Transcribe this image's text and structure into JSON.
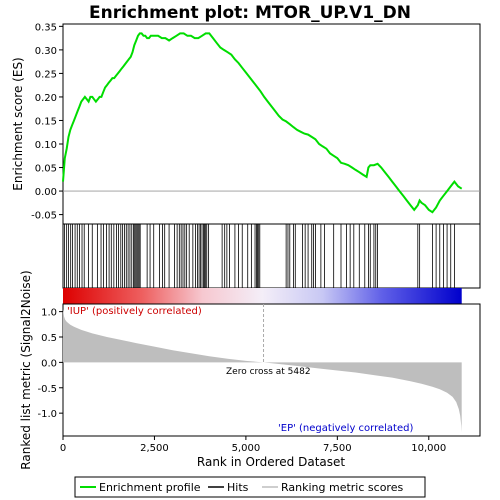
{
  "chart_data": {
    "type": "line",
    "title": "Enrichment plot: MTOR_UP.V1_DN",
    "top_panel": {
      "ylabel": "Enrichment score (ES)",
      "ylim": [
        -0.07,
        0.355
      ],
      "yticks": [
        -0.05,
        0.0,
        0.05,
        0.1,
        0.15,
        0.2,
        0.25,
        0.3,
        0.35
      ],
      "ytick_labels": [
        "-0.05",
        "0.00",
        "0.05",
        "0.10",
        "0.15",
        "0.20",
        "0.25",
        "0.30",
        "0.35"
      ],
      "series_color": "#00dd00",
      "enrichment_profile": {
        "x": [
          0,
          50,
          100,
          150,
          200,
          250,
          300,
          350,
          400,
          450,
          500,
          550,
          600,
          650,
          700,
          750,
          800,
          850,
          900,
          950,
          1000,
          1050,
          1100,
          1150,
          1200,
          1250,
          1300,
          1350,
          1400,
          1450,
          1500,
          1550,
          1600,
          1650,
          1700,
          1750,
          1800,
          1850,
          1900,
          1950,
          2000,
          2050,
          2100,
          2150,
          2200,
          2250,
          2300,
          2350,
          2400,
          2450,
          2500,
          2600,
          2700,
          2800,
          2900,
          3000,
          3100,
          3200,
          3300,
          3400,
          3500,
          3600,
          3700,
          3800,
          3900,
          4000,
          4100,
          4200,
          4300,
          4400,
          4500,
          4600,
          4700,
          4800,
          4900,
          5000,
          5100,
          5200,
          5300,
          5400,
          5500,
          5600,
          5700,
          5800,
          5900,
          6000,
          6100,
          6200,
          6300,
          6400,
          6500,
          6600,
          6700,
          6800,
          6900,
          7000,
          7100,
          7200,
          7300,
          7400,
          7500,
          7600,
          7700,
          7800,
          7900,
          8000,
          8100,
          8200,
          8300,
          8350,
          8400,
          8500,
          8600,
          8700,
          8800,
          8900,
          9000,
          9100,
          9200,
          9300,
          9400,
          9500,
          9600,
          9700,
          9750,
          9800,
          9900,
          10000,
          10100,
          10200,
          10300,
          10400,
          10500,
          10600,
          10700,
          10800,
          10900
        ],
        "y": [
          0.02,
          0.07,
          0.09,
          0.115,
          0.13,
          0.14,
          0.15,
          0.16,
          0.17,
          0.18,
          0.19,
          0.195,
          0.2,
          0.195,
          0.19,
          0.2,
          0.2,
          0.195,
          0.19,
          0.195,
          0.2,
          0.2,
          0.21,
          0.22,
          0.225,
          0.23,
          0.235,
          0.24,
          0.24,
          0.245,
          0.25,
          0.255,
          0.26,
          0.265,
          0.27,
          0.275,
          0.28,
          0.285,
          0.295,
          0.31,
          0.32,
          0.33,
          0.335,
          0.335,
          0.33,
          0.33,
          0.325,
          0.325,
          0.33,
          0.33,
          0.33,
          0.33,
          0.325,
          0.325,
          0.32,
          0.325,
          0.33,
          0.335,
          0.335,
          0.33,
          0.33,
          0.325,
          0.325,
          0.33,
          0.335,
          0.335,
          0.325,
          0.315,
          0.305,
          0.3,
          0.295,
          0.29,
          0.28,
          0.272,
          0.262,
          0.252,
          0.242,
          0.232,
          0.222,
          0.212,
          0.2,
          0.19,
          0.18,
          0.17,
          0.16,
          0.152,
          0.148,
          0.142,
          0.136,
          0.13,
          0.126,
          0.122,
          0.12,
          0.115,
          0.11,
          0.1,
          0.095,
          0.09,
          0.08,
          0.075,
          0.07,
          0.06,
          0.058,
          0.055,
          0.05,
          0.045,
          0.04,
          0.035,
          0.03,
          0.05,
          0.055,
          0.055,
          0.058,
          0.05,
          0.04,
          0.03,
          0.02,
          0.01,
          0.0,
          -0.01,
          -0.02,
          -0.03,
          -0.04,
          -0.03,
          -0.02,
          -0.025,
          -0.03,
          -0.04,
          -0.045,
          -0.035,
          -0.02,
          -0.01,
          0.0,
          0.01,
          0.02,
          0.01,
          0.005
        ]
      },
      "hits": [
        40,
        100,
        150,
        210,
        260,
        330,
        390,
        450,
        520,
        580,
        700,
        800,
        940,
        1040,
        1110,
        1190,
        1260,
        1320,
        1390,
        1460,
        1520,
        1580,
        1630,
        1680,
        1730,
        1780,
        1830,
        1880,
        1930,
        1960,
        1990,
        2020,
        2050,
        2080,
        2110,
        2300,
        2380,
        2480,
        2640,
        2720,
        2780,
        2900,
        3050,
        3120,
        3180,
        3230,
        3280,
        3330,
        3380,
        3450,
        3550,
        3620,
        3680,
        3720,
        3760,
        3800,
        3840,
        3870,
        3900,
        3930,
        3980,
        4350,
        4420,
        4480,
        4550,
        4700,
        4800,
        4900,
        5050,
        5150,
        5250,
        5290,
        5320,
        5350,
        5380,
        6100,
        6150,
        6200,
        6300,
        6350,
        6550,
        6620,
        6700,
        6800,
        6850,
        6900,
        7050,
        7150,
        7400,
        7600,
        7750,
        7850,
        7950,
        8100,
        8250,
        8350,
        8400,
        8500,
        8550,
        8600,
        9700,
        9750,
        10100,
        10200,
        10300,
        10400,
        10500,
        10600,
        10700
      ]
    },
    "ranking_panel": {
      "ylabel": "Ranked list metric (Signal2Noise)",
      "xlabel": "Rank in Ordered Dataset",
      "xlim": [
        0,
        11400
      ],
      "ylim": [
        -1.45,
        1.15
      ],
      "xticks": [
        0,
        2500,
        5000,
        7500,
        10000
      ],
      "xtick_labels": [
        "0",
        "2,500",
        "5,000",
        "7,500",
        "10,000"
      ],
      "yticks": [
        -1.0,
        -0.5,
        0.0,
        0.5,
        1.0
      ],
      "ytick_labels": [
        "-1.0",
        "-0.5",
        "0.0",
        "0.5",
        "1.0"
      ],
      "zero_cross": 5482,
      "zero_cross_label": "Zero cross at 5482",
      "positive_label": "'IUP' (positively correlated)",
      "negative_label": "'EP' (negatively correlated)",
      "metric_curve": {
        "x": [
          0,
          10,
          30,
          60,
          100,
          200,
          300,
          500,
          800,
          1200,
          1600,
          2000,
          2500,
          3000,
          3500,
          4000,
          4500,
          5000,
          5482,
          6000,
          6500,
          7000,
          7500,
          8000,
          8500,
          9000,
          9500,
          9800,
          10100,
          10300,
          10500,
          10650,
          10750,
          10820,
          10860,
          10890,
          10900
        ],
        "y": [
          1.05,
          1.0,
          0.9,
          0.84,
          0.8,
          0.74,
          0.7,
          0.64,
          0.57,
          0.5,
          0.44,
          0.38,
          0.31,
          0.24,
          0.18,
          0.12,
          0.07,
          0.03,
          0.0,
          -0.04,
          -0.08,
          -0.12,
          -0.16,
          -0.2,
          -0.25,
          -0.3,
          -0.37,
          -0.42,
          -0.48,
          -0.53,
          -0.6,
          -0.68,
          -0.78,
          -0.92,
          -1.05,
          -1.25,
          -1.38
        ]
      },
      "fill_color": "#bebebe"
    },
    "legend": {
      "items": [
        {
          "label": "Enrichment profile",
          "color": "#00dd00"
        },
        {
          "label": "Hits",
          "color": "#000000"
        },
        {
          "label": "Ranking metric scores",
          "color": "#bebebe"
        }
      ]
    }
  }
}
